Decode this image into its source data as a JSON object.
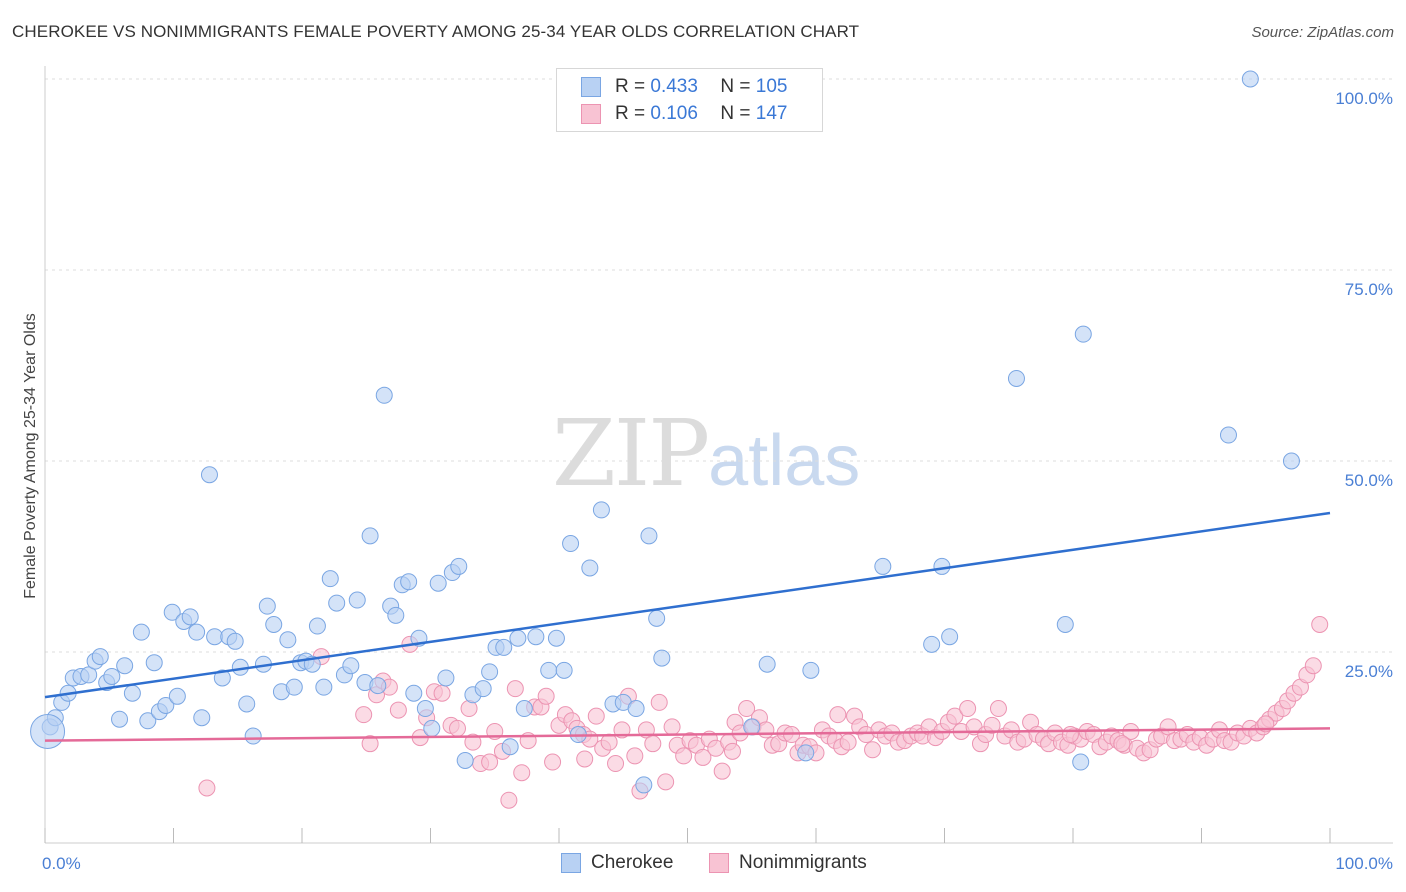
{
  "title": "CHEROKEE VS NONIMMIGRANTS FEMALE POVERTY AMONG 25-34 YEAR OLDS CORRELATION CHART",
  "source": "Source: ZipAtlas.com",
  "watermark": {
    "zip": "ZIP",
    "atlas": "atlas"
  },
  "legend_top": [
    {
      "r_label": "R =",
      "r_value": "0.433",
      "n_label": "N =",
      "n_value": "105"
    },
    {
      "r_label": "R =",
      "r_value": "0.106",
      "n_label": "N =",
      "n_value": "147"
    }
  ],
  "legend_bottom": [
    "Cherokee",
    "Nonimmigrants"
  ],
  "colors": {
    "cherokee_fill": "#b8d1f3",
    "cherokee_stroke": "#7aa6e3",
    "cherokee_line": "#2f6fcf",
    "nonimm_fill": "#f8c3d3",
    "nonimm_stroke": "#ec94b2",
    "nonimm_line": "#e46a98",
    "tick_label": "#4a7fd4",
    "grid": "#dddddd"
  },
  "chart_data": {
    "type": "scatter",
    "title": "CHEROKEE VS NONIMMIGRANTS FEMALE POVERTY AMONG 25-34 YEAR OLDS CORRELATION CHART",
    "xlabel": "",
    "ylabel": "Female Poverty Among 25-34 Year Olds",
    "xlim": [
      0,
      100
    ],
    "ylim": [
      0,
      100
    ],
    "x_tick_labels": [
      "0.0%",
      "100.0%"
    ],
    "y_tick_labels": [
      "25.0%",
      "50.0%",
      "75.0%",
      "100.0%"
    ],
    "y_ticks": [
      25,
      50,
      75,
      100
    ],
    "grid": true,
    "legend_placement": "top-center",
    "series": [
      {
        "name": "Cherokee",
        "r": 0.433,
        "n": 105,
        "trend": {
          "x": [
            0,
            100
          ],
          "y": [
            19.1,
            43.2
          ]
        },
        "points": [
          [
            0.4,
            15.2
          ],
          [
            0.8,
            16.4
          ],
          [
            1.3,
            18.4
          ],
          [
            1.8,
            19.6
          ],
          [
            2.2,
            21.6
          ],
          [
            2.8,
            21.8
          ],
          [
            3.4,
            22.0
          ],
          [
            3.9,
            23.8
          ],
          [
            4.3,
            24.4
          ],
          [
            4.8,
            21.0
          ],
          [
            5.2,
            21.8
          ],
          [
            5.8,
            16.2
          ],
          [
            6.2,
            23.2
          ],
          [
            6.8,
            19.6
          ],
          [
            7.5,
            27.6
          ],
          [
            8.0,
            16.0
          ],
          [
            8.5,
            23.6
          ],
          [
            8.9,
            17.2
          ],
          [
            9.4,
            18.0
          ],
          [
            9.9,
            30.2
          ],
          [
            10.3,
            19.2
          ],
          [
            10.8,
            29.0
          ],
          [
            11.3,
            29.6
          ],
          [
            11.8,
            27.6
          ],
          [
            12.2,
            16.4
          ],
          [
            12.8,
            48.2
          ],
          [
            13.2,
            27.0
          ],
          [
            13.8,
            21.6
          ],
          [
            14.3,
            27.0
          ],
          [
            14.8,
            26.4
          ],
          [
            15.2,
            23.0
          ],
          [
            15.7,
            18.2
          ],
          [
            16.2,
            14.0
          ],
          [
            17.0,
            23.4
          ],
          [
            17.3,
            31.0
          ],
          [
            17.8,
            28.6
          ],
          [
            18.4,
            19.8
          ],
          [
            18.9,
            26.6
          ],
          [
            19.4,
            20.4
          ],
          [
            19.9,
            23.6
          ],
          [
            20.3,
            23.8
          ],
          [
            20.8,
            23.4
          ],
          [
            21.2,
            28.4
          ],
          [
            21.7,
            20.4
          ],
          [
            22.2,
            34.6
          ],
          [
            22.7,
            31.4
          ],
          [
            23.3,
            22.0
          ],
          [
            23.8,
            23.2
          ],
          [
            24.3,
            31.8
          ],
          [
            24.9,
            21.0
          ],
          [
            25.3,
            40.2
          ],
          [
            25.9,
            20.6
          ],
          [
            26.4,
            58.6
          ],
          [
            26.9,
            31.0
          ],
          [
            27.3,
            29.8
          ],
          [
            27.8,
            33.8
          ],
          [
            28.3,
            34.2
          ],
          [
            28.7,
            19.6
          ],
          [
            29.1,
            26.8
          ],
          [
            29.6,
            17.6
          ],
          [
            30.1,
            15.0
          ],
          [
            30.6,
            34.0
          ],
          [
            31.2,
            21.6
          ],
          [
            31.7,
            35.4
          ],
          [
            32.2,
            36.2
          ],
          [
            32.7,
            10.8
          ],
          [
            33.3,
            19.4
          ],
          [
            34.1,
            20.2
          ],
          [
            34.6,
            22.4
          ],
          [
            35.1,
            25.6
          ],
          [
            35.7,
            25.6
          ],
          [
            36.2,
            12.6
          ],
          [
            36.8,
            26.8
          ],
          [
            37.3,
            17.6
          ],
          [
            38.2,
            27.0
          ],
          [
            39.2,
            22.6
          ],
          [
            39.8,
            26.8
          ],
          [
            40.4,
            22.6
          ],
          [
            40.9,
            39.2
          ],
          [
            41.5,
            14.2
          ],
          [
            42.4,
            36.0
          ],
          [
            43.3,
            43.6
          ],
          [
            44.2,
            18.2
          ],
          [
            45.0,
            18.4
          ],
          [
            46.0,
            17.6
          ],
          [
            46.6,
            7.6
          ],
          [
            47.0,
            40.2
          ],
          [
            47.6,
            29.4
          ],
          [
            48.0,
            24.2
          ],
          [
            55.0,
            15.2
          ],
          [
            56.2,
            23.4
          ],
          [
            59.2,
            11.8
          ],
          [
            59.6,
            22.6
          ],
          [
            65.2,
            36.2
          ],
          [
            69.0,
            26.0
          ],
          [
            69.8,
            36.2
          ],
          [
            70.4,
            27.0
          ],
          [
            75.6,
            60.8
          ],
          [
            79.4,
            28.6
          ],
          [
            80.6,
            10.6
          ],
          [
            80.8,
            66.6
          ],
          [
            92.1,
            53.4
          ],
          [
            93.8,
            100.0
          ],
          [
            97.0,
            50.0
          ],
          [
            0.2,
            14.6
          ]
        ]
      },
      {
        "name": "Nonimmigrants",
        "r": 0.106,
        "n": 147,
        "trend": {
          "x": [
            0,
            100
          ],
          "y": [
            13.4,
            15.0
          ]
        },
        "points": [
          [
            12.6,
            7.2
          ],
          [
            21.5,
            24.4
          ],
          [
            24.8,
            16.8
          ],
          [
            25.3,
            13.0
          ],
          [
            25.8,
            19.4
          ],
          [
            26.3,
            21.2
          ],
          [
            26.8,
            20.4
          ],
          [
            27.5,
            17.4
          ],
          [
            28.4,
            26.0
          ],
          [
            29.2,
            13.8
          ],
          [
            29.7,
            16.4
          ],
          [
            30.3,
            19.8
          ],
          [
            30.9,
            19.6
          ],
          [
            31.6,
            15.4
          ],
          [
            32.1,
            15.0
          ],
          [
            33.0,
            17.6
          ],
          [
            33.3,
            13.2
          ],
          [
            33.9,
            10.4
          ],
          [
            34.6,
            10.6
          ],
          [
            35.0,
            14.6
          ],
          [
            35.6,
            12.0
          ],
          [
            36.1,
            5.6
          ],
          [
            36.6,
            20.2
          ],
          [
            37.1,
            9.2
          ],
          [
            37.6,
            13.4
          ],
          [
            38.1,
            17.8
          ],
          [
            38.6,
            17.8
          ],
          [
            39.0,
            19.2
          ],
          [
            39.5,
            10.6
          ],
          [
            40.0,
            15.4
          ],
          [
            40.5,
            16.8
          ],
          [
            41.0,
            16.0
          ],
          [
            41.4,
            15.0
          ],
          [
            41.9,
            14.2
          ],
          [
            42.4,
            13.6
          ],
          [
            42.9,
            16.6
          ],
          [
            43.4,
            12.4
          ],
          [
            43.9,
            13.2
          ],
          [
            44.4,
            10.4
          ],
          [
            44.9,
            14.8
          ],
          [
            45.4,
            19.2
          ],
          [
            45.9,
            11.4
          ],
          [
            46.3,
            6.8
          ],
          [
            46.8,
            14.8
          ],
          [
            47.3,
            13.0
          ],
          [
            47.8,
            18.4
          ],
          [
            48.3,
            8.0
          ],
          [
            48.8,
            15.2
          ],
          [
            49.2,
            12.8
          ],
          [
            49.7,
            11.4
          ],
          [
            50.2,
            13.4
          ],
          [
            50.7,
            12.8
          ],
          [
            51.2,
            11.2
          ],
          [
            51.7,
            13.6
          ],
          [
            52.2,
            12.4
          ],
          [
            52.7,
            9.4
          ],
          [
            53.2,
            13.2
          ],
          [
            53.7,
            15.8
          ],
          [
            54.1,
            14.4
          ],
          [
            54.6,
            17.6
          ],
          [
            55.1,
            15.2
          ],
          [
            55.6,
            16.4
          ],
          [
            56.1,
            14.8
          ],
          [
            56.6,
            12.8
          ],
          [
            57.1,
            13.0
          ],
          [
            57.6,
            14.4
          ],
          [
            58.1,
            14.2
          ],
          [
            58.6,
            11.8
          ],
          [
            59.0,
            12.8
          ],
          [
            59.5,
            12.6
          ],
          [
            60.0,
            11.8
          ],
          [
            60.5,
            14.8
          ],
          [
            61.0,
            14.0
          ],
          [
            61.5,
            13.4
          ],
          [
            62.0,
            12.6
          ],
          [
            62.5,
            13.2
          ],
          [
            63.0,
            16.6
          ],
          [
            63.4,
            15.2
          ],
          [
            63.9,
            14.2
          ],
          [
            64.4,
            12.2
          ],
          [
            64.9,
            14.8
          ],
          [
            65.4,
            14.0
          ],
          [
            65.9,
            14.4
          ],
          [
            66.4,
            13.2
          ],
          [
            66.9,
            13.4
          ],
          [
            67.4,
            14.0
          ],
          [
            67.9,
            14.4
          ],
          [
            68.3,
            14.0
          ],
          [
            68.8,
            15.2
          ],
          [
            69.3,
            13.8
          ],
          [
            69.8,
            14.6
          ],
          [
            70.3,
            15.8
          ],
          [
            70.8,
            16.6
          ],
          [
            71.3,
            14.6
          ],
          [
            71.8,
            17.6
          ],
          [
            72.3,
            15.2
          ],
          [
            72.8,
            13.0
          ],
          [
            73.2,
            14.2
          ],
          [
            73.7,
            15.4
          ],
          [
            74.2,
            17.6
          ],
          [
            74.7,
            14.0
          ],
          [
            75.2,
            14.8
          ],
          [
            75.7,
            13.2
          ],
          [
            76.2,
            13.6
          ],
          [
            76.7,
            15.8
          ],
          [
            77.2,
            14.2
          ],
          [
            77.7,
            13.6
          ],
          [
            78.1,
            13.0
          ],
          [
            78.6,
            14.4
          ],
          [
            79.1,
            13.2
          ],
          [
            79.6,
            12.8
          ],
          [
            80.1,
            14.0
          ],
          [
            80.6,
            13.6
          ],
          [
            81.1,
            14.6
          ],
          [
            81.6,
            14.2
          ],
          [
            82.1,
            12.6
          ],
          [
            82.6,
            13.2
          ],
          [
            83.0,
            14.0
          ],
          [
            83.5,
            13.4
          ],
          [
            84.0,
            12.8
          ],
          [
            84.5,
            14.6
          ],
          [
            85.0,
            12.4
          ],
          [
            85.5,
            11.8
          ],
          [
            86.0,
            12.2
          ],
          [
            86.5,
            13.6
          ],
          [
            86.9,
            14.0
          ],
          [
            87.4,
            15.2
          ],
          [
            87.9,
            13.4
          ],
          [
            88.4,
            13.6
          ],
          [
            88.9,
            14.2
          ],
          [
            89.4,
            13.2
          ],
          [
            89.9,
            13.8
          ],
          [
            90.4,
            12.8
          ],
          [
            90.9,
            13.6
          ],
          [
            91.4,
            14.8
          ],
          [
            91.8,
            13.4
          ],
          [
            92.3,
            13.2
          ],
          [
            92.8,
            14.4
          ],
          [
            93.3,
            14.0
          ],
          [
            93.8,
            15.0
          ],
          [
            94.3,
            14.4
          ],
          [
            94.8,
            15.2
          ],
          [
            95.3,
            16.2
          ],
          [
            95.8,
            17.0
          ],
          [
            96.3,
            17.6
          ],
          [
            96.7,
            18.6
          ],
          [
            97.2,
            19.6
          ],
          [
            97.7,
            20.4
          ],
          [
            98.2,
            22.0
          ],
          [
            98.7,
            23.2
          ],
          [
            99.2,
            28.6
          ],
          [
            95.0,
            15.6
          ],
          [
            83.8,
            13.0
          ],
          [
            79.8,
            14.2
          ],
          [
            61.7,
            16.8
          ],
          [
            53.5,
            12.0
          ],
          [
            42.0,
            11.0
          ]
        ]
      }
    ]
  }
}
